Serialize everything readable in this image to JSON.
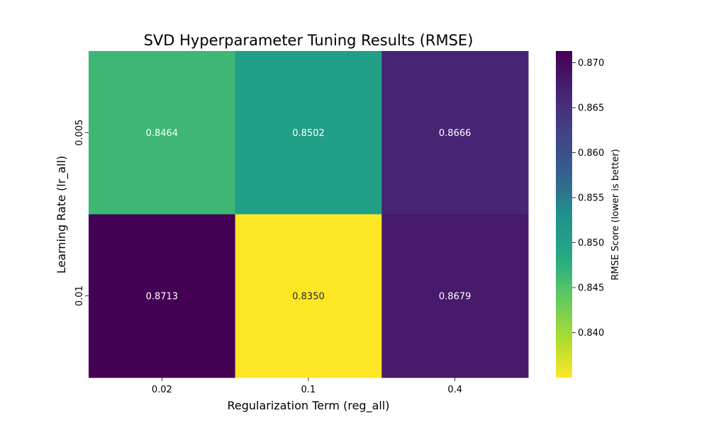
{
  "chart_data": {
    "type": "heatmap",
    "title": "SVD Hyperparameter Tuning Results (RMSE)",
    "xlabel": "Regularization Term (reg_all)",
    "ylabel": "Learning Rate (lr_all)",
    "x_categories": [
      "0.02",
      "0.1",
      "0.4"
    ],
    "y_categories": [
      "0.005",
      "0.01"
    ],
    "values": [
      [
        0.8464,
        0.8502,
        0.8666
      ],
      [
        0.8713,
        0.835,
        0.8679
      ]
    ],
    "value_labels": [
      [
        "0.8464",
        "0.8502",
        "0.8666"
      ],
      [
        "0.8713",
        "0.8350",
        "0.8679"
      ]
    ],
    "colormap": "viridis_r",
    "colorbar": {
      "label": "RMSE Score (lower is better)",
      "range": [
        0.835,
        0.8713
      ],
      "ticks": [
        0.84,
        0.845,
        0.85,
        0.855,
        0.86,
        0.865,
        0.87
      ],
      "tick_labels": [
        "0.840",
        "0.845",
        "0.850",
        "0.855",
        "0.860",
        "0.865",
        "0.870"
      ]
    }
  }
}
